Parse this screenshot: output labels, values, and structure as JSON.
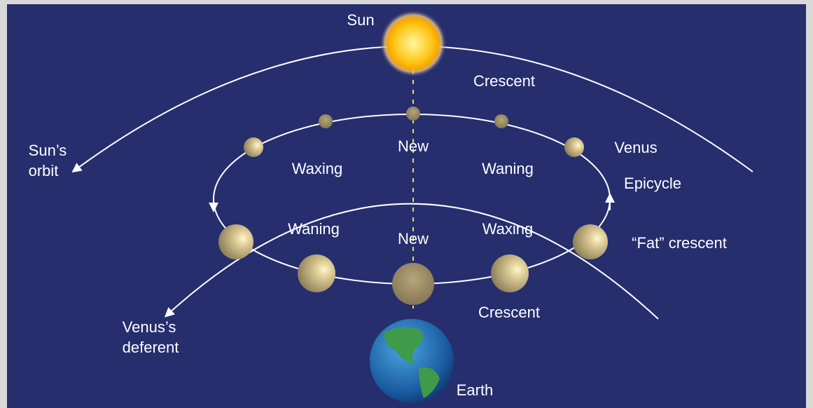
{
  "labels": {
    "sun": "Sun",
    "crescent_top": "Crescent",
    "suns_orbit": [
      "Sun’s",
      "orbit"
    ],
    "new_top": "New",
    "waxing_top": "Waxing",
    "waning_top": "Waning",
    "venus": "Venus",
    "epicycle": "Epicycle",
    "waning_bottom": "Waning",
    "new_bottom": "New",
    "waxing_bottom": "Waxing",
    "fat_crescent": "“Fat” crescent",
    "venus_deferent": [
      "Venus’s",
      "deferent"
    ],
    "crescent_bottom": "Crescent",
    "earth": "Earth"
  }
}
